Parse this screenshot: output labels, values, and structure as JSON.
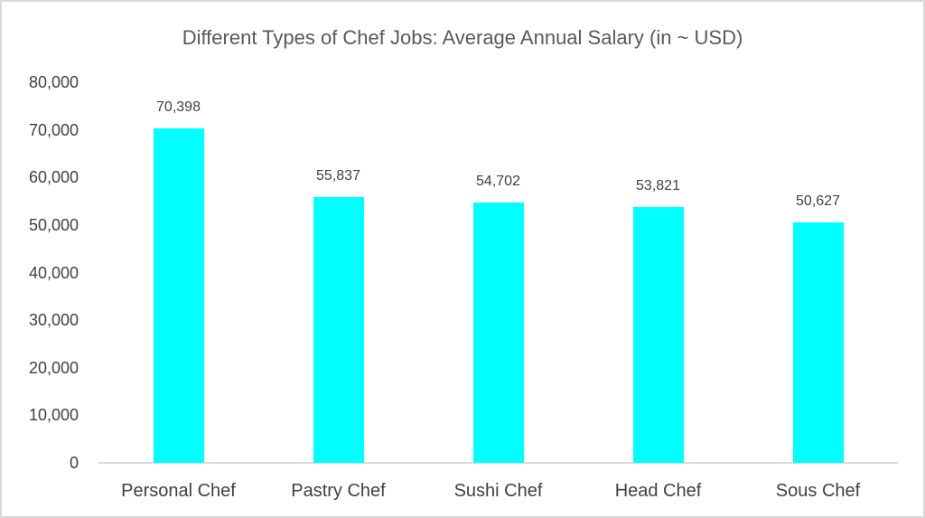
{
  "chart_data": {
    "type": "bar",
    "title": "Different Types of Chef Jobs: Average Annual Salary (in ~ USD)",
    "categories": [
      "Personal Chef",
      "Pastry Chef",
      "Sushi Chef",
      "Head Chef",
      "Sous Chef"
    ],
    "values": [
      70398,
      55837,
      54702,
      53821,
      50627
    ],
    "value_labels": [
      "70,398",
      "55,837",
      "54,702",
      "53,821",
      "50,627"
    ],
    "xlabel": "",
    "ylabel": "",
    "ylim": [
      0,
      80000
    ],
    "ytick_step": 10000,
    "ytick_labels": [
      "0",
      "10,000",
      "20,000",
      "30,000",
      "40,000",
      "50,000",
      "60,000",
      "70,000",
      "80,000"
    ],
    "grid": false,
    "legend_position": "none",
    "colors": {
      "bar_fill": "#00ffff",
      "title_text": "#595959",
      "axis_text": "#404040",
      "value_text": "#404040",
      "axis_line": "#d9d9d9",
      "frame_border": "#d9d9d9",
      "background": "#ffffff"
    }
  }
}
